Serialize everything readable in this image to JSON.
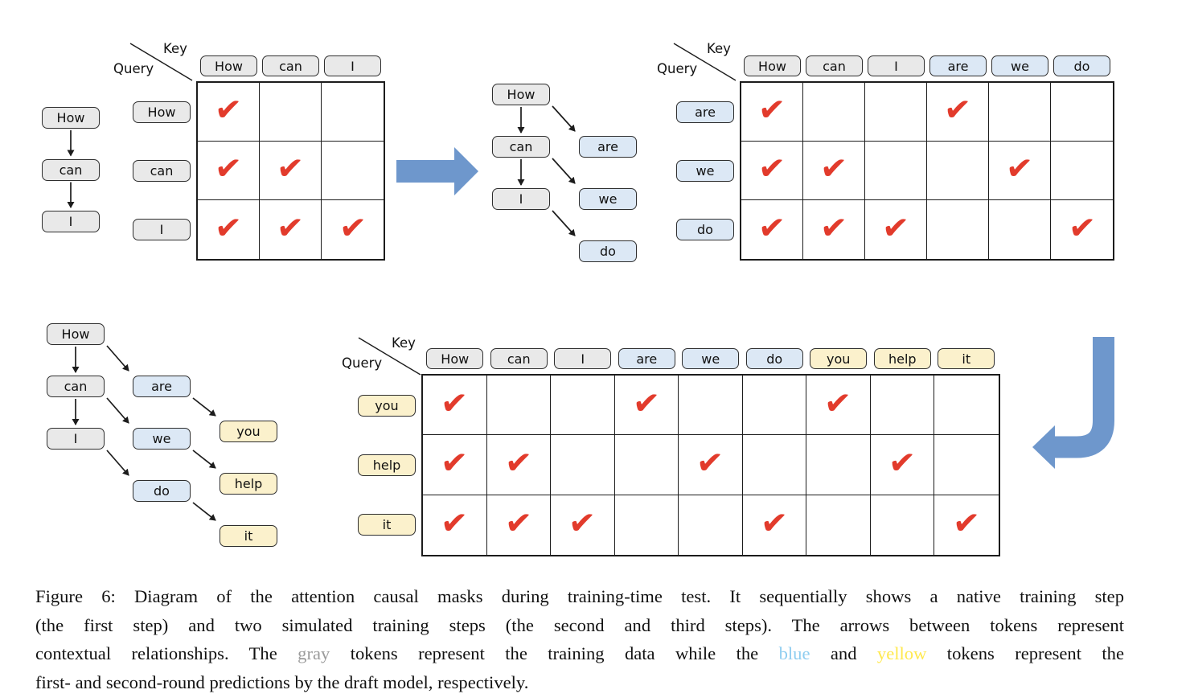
{
  "palette": {
    "token_gray": "#e9e9e9",
    "token_blue": "#dce8f5",
    "token_yellow": "#fbf1cc",
    "check_red": "#e23b2c",
    "arrow_blue": "#6e97cc",
    "line_black": "#1c1c1c",
    "caption_black": "#111111",
    "caption_gray": "#9b9b9b",
    "caption_blue": "#8ecdf0",
    "caption_yellow": "#ffe94e"
  },
  "icons": {
    "check": "✔"
  },
  "axis": {
    "key": "Key",
    "query": "Query"
  },
  "chain_a": {
    "nodes": [
      {
        "id": "How",
        "label": "How",
        "color": "gray",
        "col": 0,
        "row": 0
      },
      {
        "id": "can",
        "label": "can",
        "color": "gray",
        "col": 0,
        "row": 1
      },
      {
        "id": "I",
        "label": "I",
        "color": "gray",
        "col": 0,
        "row": 2
      }
    ],
    "edges": [
      [
        "How",
        "can"
      ],
      [
        "can",
        "I"
      ]
    ]
  },
  "tree_b": {
    "nodes": [
      {
        "id": "How",
        "label": "How",
        "color": "gray",
        "col": 0,
        "row": 0
      },
      {
        "id": "can",
        "label": "can",
        "color": "gray",
        "col": 0,
        "row": 1
      },
      {
        "id": "I",
        "label": "I",
        "color": "gray",
        "col": 0,
        "row": 2
      },
      {
        "id": "are",
        "label": "are",
        "color": "blue",
        "col": 1,
        "row": 0
      },
      {
        "id": "we",
        "label": "we",
        "color": "blue",
        "col": 1,
        "row": 1
      },
      {
        "id": "do",
        "label": "do",
        "color": "blue",
        "col": 1,
        "row": 2
      }
    ],
    "edges": [
      [
        "How",
        "can"
      ],
      [
        "can",
        "I"
      ],
      [
        "How",
        "are"
      ],
      [
        "can",
        "we"
      ],
      [
        "I",
        "do"
      ]
    ]
  },
  "tree_c": {
    "nodes": [
      {
        "id": "How",
        "label": "How",
        "color": "gray",
        "col": 0,
        "row": 0
      },
      {
        "id": "can",
        "label": "can",
        "color": "gray",
        "col": 0,
        "row": 1
      },
      {
        "id": "I",
        "label": "I",
        "color": "gray",
        "col": 0,
        "row": 2
      },
      {
        "id": "are",
        "label": "are",
        "color": "blue",
        "col": 1,
        "row": 0
      },
      {
        "id": "we",
        "label": "we",
        "color": "blue",
        "col": 1,
        "row": 1
      },
      {
        "id": "do",
        "label": "do",
        "color": "blue",
        "col": 1,
        "row": 2
      },
      {
        "id": "you",
        "label": "you",
        "color": "yellow",
        "col": 2,
        "row": 0
      },
      {
        "id": "help",
        "label": "help",
        "color": "yellow",
        "col": 2,
        "row": 1
      },
      {
        "id": "it",
        "label": "it",
        "color": "yellow",
        "col": 2,
        "row": 2
      }
    ],
    "edges": [
      [
        "How",
        "can"
      ],
      [
        "can",
        "I"
      ],
      [
        "How",
        "are"
      ],
      [
        "can",
        "we"
      ],
      [
        "I",
        "do"
      ],
      [
        "are",
        "you"
      ],
      [
        "we",
        "help"
      ],
      [
        "do",
        "it"
      ]
    ]
  },
  "matrix_a": {
    "keys": [
      {
        "label": "How",
        "color": "gray"
      },
      {
        "label": "can",
        "color": "gray"
      },
      {
        "label": "I",
        "color": "gray"
      }
    ],
    "queries": [
      {
        "label": "How",
        "color": "gray"
      },
      {
        "label": "can",
        "color": "gray"
      },
      {
        "label": "I",
        "color": "gray"
      }
    ],
    "checks": [
      [
        1,
        0,
        0
      ],
      [
        1,
        1,
        0
      ],
      [
        1,
        1,
        1
      ]
    ]
  },
  "matrix_b": {
    "keys": [
      {
        "label": "How",
        "color": "gray"
      },
      {
        "label": "can",
        "color": "gray"
      },
      {
        "label": "I",
        "color": "gray"
      },
      {
        "label": "are",
        "color": "blue"
      },
      {
        "label": "we",
        "color": "blue"
      },
      {
        "label": "do",
        "color": "blue"
      }
    ],
    "queries": [
      {
        "label": "are",
        "color": "blue"
      },
      {
        "label": "we",
        "color": "blue"
      },
      {
        "label": "do",
        "color": "blue"
      }
    ],
    "checks": [
      [
        1,
        0,
        0,
        1,
        0,
        0
      ],
      [
        1,
        1,
        0,
        0,
        1,
        0
      ],
      [
        1,
        1,
        1,
        0,
        0,
        1
      ]
    ]
  },
  "matrix_c": {
    "keys": [
      {
        "label": "How",
        "color": "gray"
      },
      {
        "label": "can",
        "color": "gray"
      },
      {
        "label": "I",
        "color": "gray"
      },
      {
        "label": "are",
        "color": "blue"
      },
      {
        "label": "we",
        "color": "blue"
      },
      {
        "label": "do",
        "color": "blue"
      },
      {
        "label": "you",
        "color": "yellow"
      },
      {
        "label": "help",
        "color": "yellow"
      },
      {
        "label": "it",
        "color": "yellow"
      }
    ],
    "queries": [
      {
        "label": "you",
        "color": "yellow"
      },
      {
        "label": "help",
        "color": "yellow"
      },
      {
        "label": "it",
        "color": "yellow"
      }
    ],
    "checks": [
      [
        1,
        0,
        0,
        1,
        0,
        0,
        1,
        0,
        0
      ],
      [
        1,
        1,
        0,
        0,
        1,
        0,
        0,
        1,
        0
      ],
      [
        1,
        1,
        1,
        0,
        0,
        1,
        0,
        0,
        1
      ]
    ]
  },
  "caption": {
    "lines": [
      [
        {
          "t": "Figure 6: Diagram of the attention causal masks during training-time test. It sequentially shows a native training step",
          "c": "black"
        }
      ],
      [
        {
          "t": "(the first step) and two simulated training steps (the second and third steps). The arrows between tokens represent",
          "c": "black"
        }
      ],
      [
        {
          "t": "contextual relationships. The ",
          "c": "black"
        },
        {
          "t": "gray",
          "c": "gray"
        },
        {
          "t": " tokens represent the training data while the ",
          "c": "black"
        },
        {
          "t": "blue",
          "c": "blue"
        },
        {
          "t": " and ",
          "c": "black"
        },
        {
          "t": "yellow",
          "c": "yellow"
        },
        {
          "t": " tokens represent the",
          "c": "black"
        }
      ],
      [
        {
          "t": "first- and second-round predictions by the draft model, respectively.",
          "c": "black"
        }
      ]
    ]
  }
}
